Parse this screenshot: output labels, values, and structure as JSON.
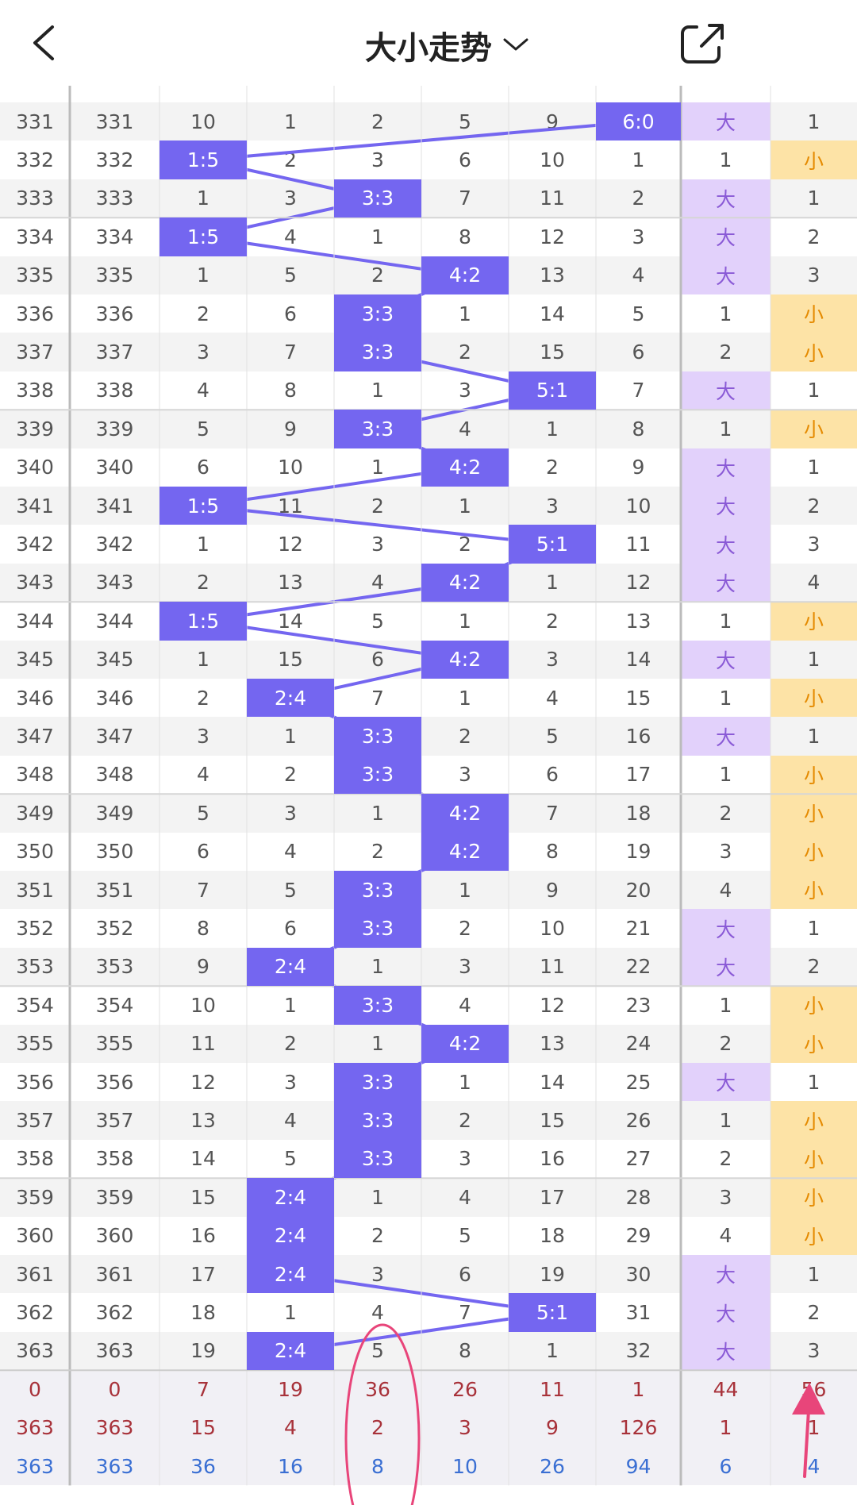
{
  "header": {
    "title": "大小走势"
  },
  "table": {
    "rows": [
      [
        331,
        331,
        10,
        1,
        2,
        5,
        9,
        "6:0",
        "大",
        1
      ],
      [
        332,
        332,
        "1:5",
        2,
        3,
        6,
        10,
        1,
        1,
        "小"
      ],
      [
        333,
        333,
        1,
        3,
        "3:3",
        7,
        11,
        2,
        "大",
        1
      ],
      [
        334,
        334,
        "1:5",
        4,
        1,
        8,
        12,
        3,
        "大",
        2
      ],
      [
        335,
        335,
        1,
        5,
        2,
        "4:2",
        13,
        4,
        "大",
        3
      ],
      [
        336,
        336,
        2,
        6,
        "3:3",
        1,
        14,
        5,
        1,
        "小"
      ],
      [
        337,
        337,
        3,
        7,
        "3:3",
        2,
        15,
        6,
        2,
        "小"
      ],
      [
        338,
        338,
        4,
        8,
        1,
        3,
        "5:1",
        7,
        "大",
        1
      ],
      [
        339,
        339,
        5,
        9,
        "3:3",
        4,
        1,
        8,
        1,
        "小"
      ],
      [
        340,
        340,
        6,
        10,
        1,
        "4:2",
        2,
        9,
        "大",
        1
      ],
      [
        341,
        341,
        "1:5",
        11,
        2,
        1,
        3,
        10,
        "大",
        2
      ],
      [
        342,
        342,
        1,
        12,
        3,
        2,
        "5:1",
        11,
        "大",
        3
      ],
      [
        343,
        343,
        2,
        13,
        4,
        "4:2",
        1,
        12,
        "大",
        4
      ],
      [
        344,
        344,
        "1:5",
        14,
        5,
        1,
        2,
        13,
        1,
        "小"
      ],
      [
        345,
        345,
        1,
        15,
        6,
        "4:2",
        3,
        14,
        "大",
        1
      ],
      [
        346,
        346,
        2,
        "2:4",
        7,
        1,
        4,
        15,
        1,
        "小"
      ],
      [
        347,
        347,
        3,
        1,
        "3:3",
        2,
        5,
        16,
        "大",
        1
      ],
      [
        348,
        348,
        4,
        2,
        "3:3",
        3,
        6,
        17,
        1,
        "小"
      ],
      [
        349,
        349,
        5,
        3,
        1,
        "4:2",
        7,
        18,
        2,
        "小"
      ],
      [
        350,
        350,
        6,
        4,
        2,
        "4:2",
        8,
        19,
        3,
        "小"
      ],
      [
        351,
        351,
        7,
        5,
        "3:3",
        1,
        9,
        20,
        4,
        "小"
      ],
      [
        352,
        352,
        8,
        6,
        "3:3",
        2,
        10,
        21,
        "大",
        1
      ],
      [
        353,
        353,
        9,
        "2:4",
        1,
        3,
        11,
        22,
        "大",
        2
      ],
      [
        354,
        354,
        10,
        1,
        "3:3",
        4,
        12,
        23,
        1,
        "小"
      ],
      [
        355,
        355,
        11,
        2,
        1,
        "4:2",
        13,
        24,
        2,
        "小"
      ],
      [
        356,
        356,
        12,
        3,
        "3:3",
        1,
        14,
        25,
        "大",
        1
      ],
      [
        357,
        357,
        13,
        4,
        "3:3",
        2,
        15,
        26,
        1,
        "小"
      ],
      [
        358,
        358,
        14,
        5,
        "3:3",
        3,
        16,
        27,
        2,
        "小"
      ],
      [
        359,
        359,
        15,
        "2:4",
        1,
        4,
        17,
        28,
        3,
        "小"
      ],
      [
        360,
        360,
        16,
        "2:4",
        2,
        5,
        18,
        29,
        4,
        "小"
      ],
      [
        361,
        361,
        17,
        "2:4",
        3,
        6,
        19,
        30,
        "大",
        1
      ],
      [
        362,
        362,
        18,
        1,
        4,
        7,
        "5:1",
        31,
        "大",
        2
      ],
      [
        363,
        363,
        19,
        "2:4",
        5,
        8,
        1,
        32,
        "大",
        3
      ]
    ],
    "footer": [
      [
        0,
        0,
        7,
        19,
        36,
        26,
        11,
        1,
        44,
        56
      ],
      [
        363,
        363,
        15,
        4,
        2,
        3,
        9,
        126,
        1,
        1
      ],
      [
        363,
        363,
        36,
        16,
        8,
        10,
        26,
        94,
        6,
        4
      ]
    ]
  }
}
